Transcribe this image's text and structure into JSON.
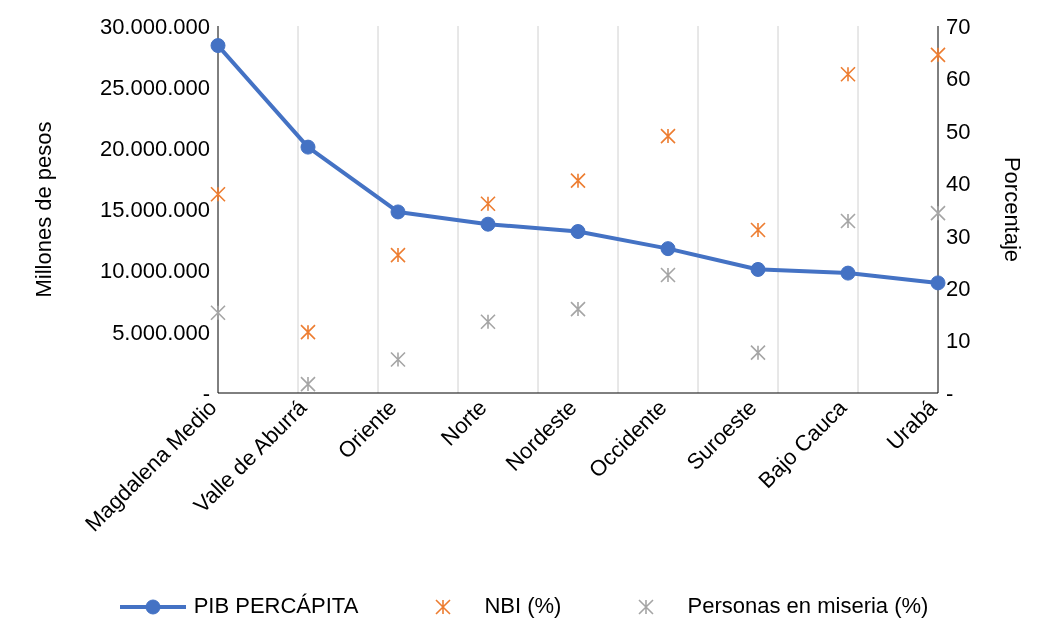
{
  "chart_data": {
    "type": "line",
    "ylabel": "Millones de pesos",
    "y2label": "Porcentaje",
    "categories": [
      "Magdalena Medio",
      "Valle de Aburrá",
      "Oriente",
      "Norte",
      "Nordeste",
      "Occidente",
      "Suroeste",
      "Bajo Cauca",
      "Urabá"
    ],
    "series": [
      {
        "name": "PIB PERCÁPITA",
        "color": "#4472c4",
        "marker": "circle",
        "values": [
          28400000,
          20100000,
          14800000,
          13800000,
          13200000,
          11800000,
          10100000,
          9800000,
          9000000
        ]
      },
      {
        "name": "NBI (%)",
        "type": "scatter",
        "axis": "y2",
        "color": "#ed7d31",
        "marker": "cross",
        "values": [
          37.9,
          11.6,
          26.3,
          36.1,
          40.5,
          49.0,
          31.1,
          60.8,
          64.5
        ]
      },
      {
        "name": "Personas en miseria (%)",
        "type": "scatter",
        "axis": "y2",
        "color": "#a5a5a5",
        "marker": "cross",
        "values": [
          15.3,
          1.7,
          6.4,
          13.6,
          16.0,
          22.5,
          7.7,
          32.8,
          34.3
        ]
      }
    ],
    "ylim": [
      0,
      30000000
    ],
    "yticks": [
      {
        "value": 0,
        "label": "-"
      },
      {
        "value": 5000000,
        "label": "5.000.000"
      },
      {
        "value": 10000000,
        "label": "10.000.000"
      },
      {
        "value": 15000000,
        "label": "15.000.000"
      },
      {
        "value": 20000000,
        "label": "20.000.000"
      },
      {
        "value": 25000000,
        "label": "25.000.000"
      },
      {
        "value": 30000000,
        "label": "30.000.000"
      }
    ],
    "y2lim": [
      0,
      70
    ],
    "y2ticks": [
      {
        "value": 0,
        "label": "-"
      },
      10,
      20,
      30,
      40,
      50,
      60,
      70
    ],
    "grid": "x",
    "legend": "bottom"
  }
}
